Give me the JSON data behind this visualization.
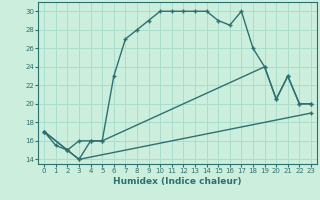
{
  "xlabel": "Humidex (Indice chaleur)",
  "bg_color": "#cceedd",
  "grid_color": "#aaddcc",
  "line_color": "#2d7070",
  "xlim": [
    -0.5,
    23.5
  ],
  "ylim": [
    13.5,
    31
  ],
  "xticks": [
    0,
    1,
    2,
    3,
    4,
    5,
    6,
    7,
    8,
    9,
    10,
    11,
    12,
    13,
    14,
    15,
    16,
    17,
    18,
    19,
    20,
    21,
    22,
    23
  ],
  "yticks": [
    14,
    16,
    18,
    20,
    22,
    24,
    26,
    28,
    30
  ],
  "line1_x": [
    0,
    1,
    2,
    3,
    4,
    5,
    6,
    7,
    8,
    9,
    10,
    11,
    12,
    13,
    14,
    15,
    16,
    17,
    18,
    19,
    20,
    21,
    22,
    23
  ],
  "line1_y": [
    17,
    15.5,
    15,
    14,
    16,
    16,
    23,
    27,
    28,
    29,
    30,
    30,
    30,
    30,
    30,
    29,
    28.5,
    30,
    26,
    24,
    20.5,
    23,
    20,
    20
  ],
  "line2_x": [
    0,
    2,
    3,
    4,
    5,
    19,
    20,
    21,
    22,
    23
  ],
  "line2_y": [
    17,
    15,
    16,
    16,
    16,
    24,
    20.5,
    23,
    20,
    20
  ],
  "line3_x": [
    0,
    2,
    3,
    23
  ],
  "line3_y": [
    17,
    15,
    14,
    19
  ]
}
